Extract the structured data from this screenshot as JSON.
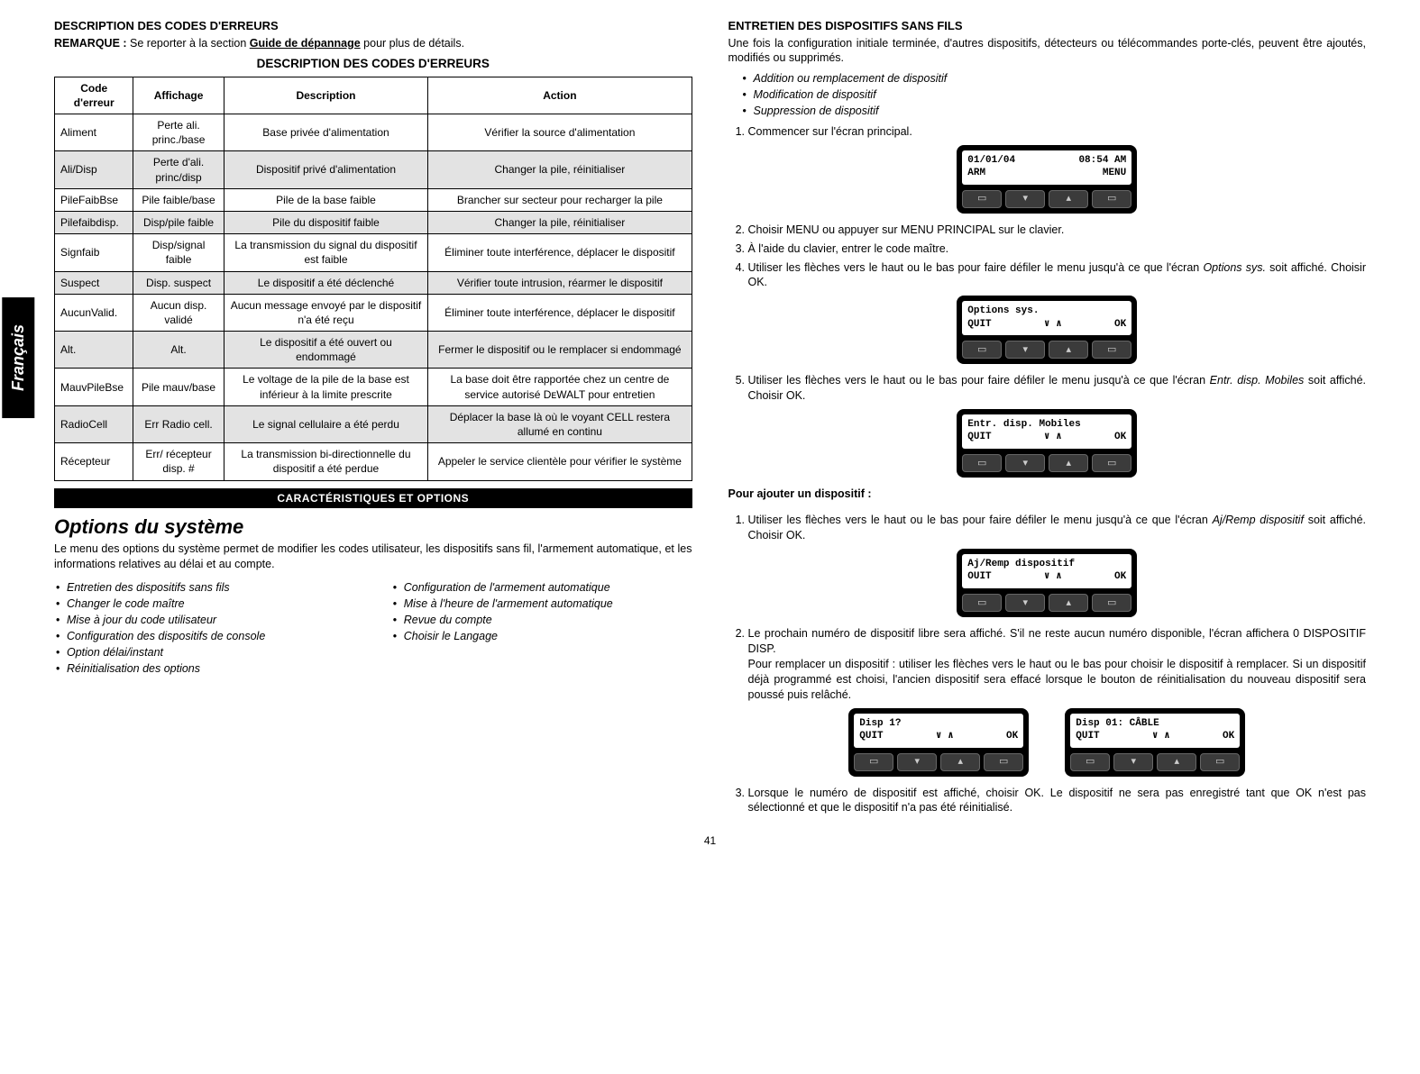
{
  "language_tab": "Français",
  "page_number": "41",
  "left": {
    "heading_desc": "DESCRIPTION DES CODES D'ERREURS",
    "remark_label": "REMARQUE :",
    "remark_text_a": " Se reporter à la section ",
    "remark_guide": "Guide de dépannage",
    "remark_text_b": " pour plus de détails.",
    "table_title": "DESCRIPTION DES CODES D'ERREURS",
    "table": {
      "headers": [
        "Code d'erreur",
        "Affichage",
        "Description",
        "Action"
      ],
      "rows": [
        {
          "shade": false,
          "cells": [
            "Aliment",
            "Perte ali. princ./base",
            "Base privée d'alimentation",
            "Vérifier la source d'alimentation"
          ]
        },
        {
          "shade": true,
          "cells": [
            "Ali/Disp",
            "Perte d'ali. princ/disp",
            "Dispositif privé d'alimentation",
            "Changer la pile, réinitialiser"
          ]
        },
        {
          "shade": false,
          "cells": [
            "PileFaibBse",
            "Pile faible/base",
            "Pile de la base faible",
            "Brancher sur secteur pour recharger la pile"
          ]
        },
        {
          "shade": true,
          "cells": [
            "Pilefaibdisp.",
            "Disp/pile faible",
            "Pile du dispositif faible",
            "Changer la pile, réinitialiser"
          ]
        },
        {
          "shade": false,
          "cells": [
            "Signfaib",
            "Disp/signal faible",
            "La transmission du signal du dispositif est faible",
            "Éliminer toute interférence, déplacer le dispositif"
          ]
        },
        {
          "shade": true,
          "cells": [
            "Suspect",
            "Disp. suspect",
            "Le dispositif a été déclenché",
            "Vérifier toute intrusion, réarmer le dispositif"
          ]
        },
        {
          "shade": false,
          "cells": [
            "AucunValid.",
            "Aucun disp. validé",
            "Aucun message envoyé par le dispositif n'a été reçu",
            "Éliminer toute interférence, déplacer le dispositif"
          ]
        },
        {
          "shade": true,
          "cells": [
            "Alt.",
            "Alt.",
            "Le dispositif a été ouvert ou endommagé",
            "Fermer le dispositif ou le remplacer si endommagé"
          ]
        },
        {
          "shade": false,
          "cells": [
            "MauvPileBse",
            "Pile mauv/base",
            "Le voltage de la pile de la base est inférieur à la limite prescrite",
            "La base doit être rapportée chez un centre de service autorisé DᴇWALT pour entretien"
          ]
        },
        {
          "shade": true,
          "cells": [
            "RadioCell",
            "Err Radio cell.",
            "Le signal cellulaire a été perdu",
            "Déplacer la base là où le voyant CELL restera allumé en continu"
          ]
        },
        {
          "shade": false,
          "cells": [
            "Récepteur",
            "Err/ récepteur disp. #",
            "La transmission bi-directionnelle du dispositif a été perdue",
            "Appeler le service clientèle pour vérifier le système"
          ]
        }
      ]
    },
    "black_bar": "CARACTÉRISTIQUES ET OPTIONS",
    "section2_title": "Options du système",
    "section2_para": "Le menu des options du système permet de modifier les codes utilisateur, les dispositifs sans fil, l'armement automatique, et les informations relatives au délai et au compte.",
    "list_left": [
      "Entretien des dispositifs sans fils",
      "Changer le code maître",
      "Mise à jour du code utilisateur",
      "Configuration des dispositifs de console",
      "Option délai/instant",
      "Réinitialisation des options"
    ],
    "list_right": [
      "Configuration de l'armement automatique",
      "Mise à l'heure de l'armement automatique",
      "Revue du compte",
      "Choisir le Langage"
    ]
  },
  "right": {
    "heading": "ENTRETIEN DES DISPOSITIFS SANS FILS",
    "intro": "Une fois la configuration initiale terminée, d'autres dispositifs, détecteurs ou télécommandes porte-clés, peuvent être ajoutés, modifiés ou supprimés.",
    "intro_bullets": [
      "Addition ou remplacement de dispositif",
      "Modification de dispositif",
      "Suppression de dispositif"
    ],
    "steps_a": {
      "1": "Commencer sur l'écran principal.",
      "2": "Choisir MENU ou appuyer sur MENU PRINCIPAL sur le clavier.",
      "3": "À l'aide du clavier, entrer le code maître.",
      "4a": "Utiliser les flèches vers le haut ou le bas pour faire défiler le menu jusqu'à ce que l'écran ",
      "4b": "Options sys.",
      "4c": " soit affiché. Choisir OK.",
      "5a": "Utiliser les flèches vers le haut ou le bas pour faire défiler le menu jusqu'à ce que l'écran ",
      "5b": "Entr. disp. Mobiles",
      "5c": " soit affiché. Choisir OK."
    },
    "add_title": "Pour ajouter un dispositif :",
    "steps_b": {
      "1a": "Utiliser les flèches vers le haut ou le bas pour faire défiler le menu jusqu'à ce que l'écran ",
      "1b": "Aj/Remp dispositif",
      "1c": " soit affiché. Choisir OK.",
      "2a": "Le prochain numéro de dispositif libre sera affiché. S'il ne reste aucun numéro disponible, l'écran affichera 0 DISPOSITIF DISP.",
      "2b": "Pour remplacer un dispositif : utiliser les flèches vers le haut ou le bas pour choisir le dispositif à remplacer. Si un dispositif déjà programmé est choisi, l'ancien dispositif sera effacé lorsque le bouton de réinitialisation du nouveau dispositif sera poussé puis relâché.",
      "3": "Lorsque le numéro de dispositif est affiché, choisir OK. Le dispositif ne sera pas enregistré tant que OK n'est pas sélectionné et que le dispositif n'a pas été réinitialisé."
    },
    "lcd1": {
      "l1a": "01/01/04",
      "l1b": "08:54 AM",
      "l2a": "ARM",
      "l2b": "MENU"
    },
    "lcd2": {
      "l1": "Options sys.",
      "l2a": "QUIT",
      "l2b": "∨ ∧",
      "l2c": "OK"
    },
    "lcd3": {
      "l1": "Entr. disp. Mobiles",
      "l2a": "QUIT",
      "l2b": "∨ ∧",
      "l2c": "OK"
    },
    "lcd4": {
      "l1": "Aj/Remp dispositif",
      "l2a": "OUIT",
      "l2b": "∨ ∧",
      "l2c": "OK"
    },
    "lcd5": {
      "l1": "Disp 1?",
      "l2a": "QUIT",
      "l2b": "∨ ∧",
      "l2c": "OK"
    },
    "lcd6": {
      "l1": "Disp 01: CÂBLE",
      "l2a": "QUIT",
      "l2b": "∨ ∧",
      "l2c": "OK"
    }
  }
}
